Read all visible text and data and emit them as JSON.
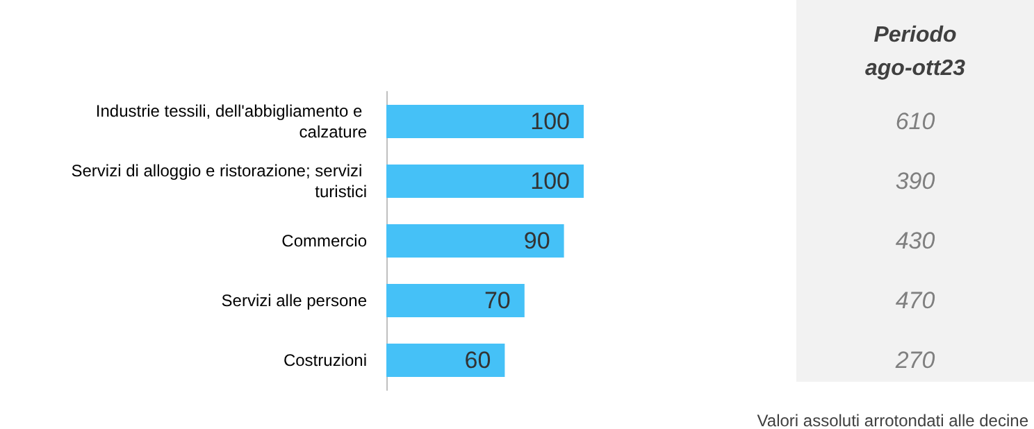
{
  "chart_data": [
    {
      "type": "bar",
      "orientation": "horizontal",
      "categories": [
        "Industrie tessili, dell'abbigliamento e calzature",
        "Servizi di alloggio e ristorazione; servizi turistici",
        "Commercio",
        "Servizi alle persone",
        "Costruzioni"
      ],
      "values": [
        100,
        100,
        90,
        70,
        60
      ],
      "color": "#45c1f7",
      "data_labels": true,
      "annotations": [
        "Valori assoluti arrotondati alle decine"
      ]
    },
    {
      "type": "other",
      "title": "Periodo ago-ott23",
      "values": [
        610,
        390,
        430,
        470,
        270
      ],
      "data_labels": true
    }
  ]
}
